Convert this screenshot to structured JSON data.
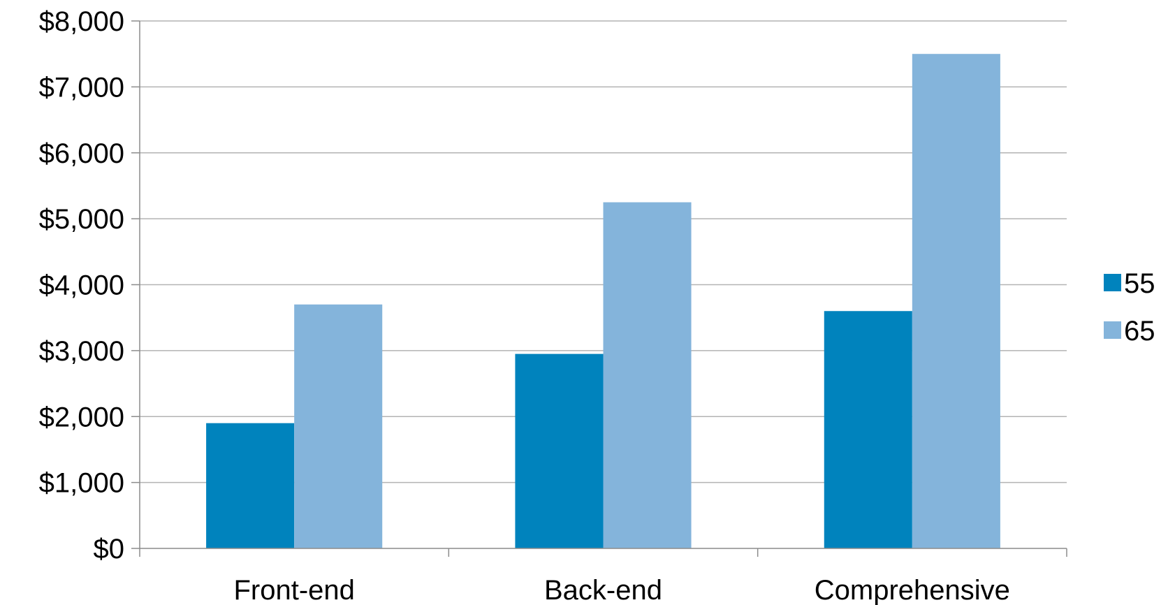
{
  "chart_data": {
    "type": "bar",
    "categories": [
      "Front-end",
      "Back-end",
      "Comprehensive"
    ],
    "series": [
      {
        "name": "55",
        "values": [
          1900,
          2950,
          3600
        ],
        "color": "#0083bd"
      },
      {
        "name": "65",
        "values": [
          3700,
          5250,
          7500
        ],
        "color": "#84b4db"
      }
    ],
    "yticks": [
      "$0",
      "$1,000",
      "$2,000",
      "$3,000",
      "$4,000",
      "$5,000",
      "$6,000",
      "$7,000",
      "$8,000"
    ],
    "ylim": [
      0,
      8000
    ],
    "grid": true,
    "legend": "right",
    "title": "",
    "xlabel": "",
    "ylabel": ""
  }
}
